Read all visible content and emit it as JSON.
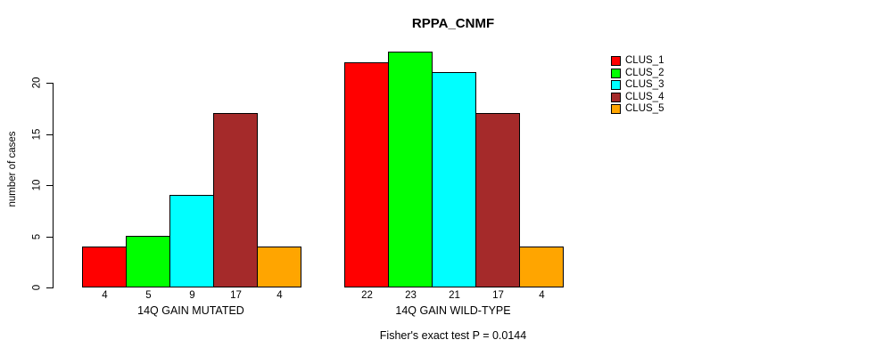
{
  "chart_data": {
    "type": "bar",
    "title": "RPPA_CNMF",
    "ylabel": "number of cases",
    "xlabel": "",
    "yticks": [
      0,
      5,
      10,
      15,
      20
    ],
    "ylim": [
      0,
      23
    ],
    "grid": false,
    "legend_position": "right-outside",
    "categories": [
      "14Q GAIN MUTATED",
      "14Q GAIN WILD-TYPE"
    ],
    "series": [
      {
        "name": "CLUS_1",
        "color": "#ff0000",
        "values": [
          4,
          22
        ]
      },
      {
        "name": "CLUS_2",
        "color": "#00ff00",
        "values": [
          5,
          23
        ]
      },
      {
        "name": "CLUS_3",
        "color": "#00ffff",
        "values": [
          9,
          21
        ]
      },
      {
        "name": "CLUS_4",
        "color": "#a52a2a",
        "values": [
          17,
          17
        ]
      },
      {
        "name": "CLUS_5",
        "color": "#ffa500",
        "values": [
          4,
          4
        ]
      }
    ],
    "bar_value_labels": {
      "14Q GAIN MUTATED": [
        4,
        5,
        9,
        17,
        4
      ],
      "14Q GAIN WILD-TYPE": [
        22,
        23,
        21,
        17,
        4
      ]
    },
    "footnote": "Fisher's exact test P = 0.0144"
  }
}
